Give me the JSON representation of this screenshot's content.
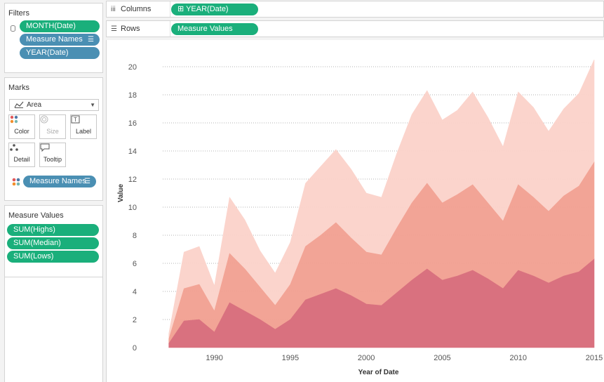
{
  "filters": {
    "title": "Filters",
    "pills": [
      "MONTH(Date)",
      "Measure Names",
      "YEAR(Date)"
    ]
  },
  "marks": {
    "title": "Marks",
    "mark_type": "Area",
    "buttons": [
      "Color",
      "Size",
      "Label",
      "Detail",
      "Tooltip"
    ],
    "color_pill": "Measure Names"
  },
  "measure_values": {
    "title": "Measure Values",
    "pills": [
      "SUM(Highs)",
      "SUM(Median)",
      "SUM(Lows)"
    ]
  },
  "shelves": {
    "columns_label": "Columns",
    "columns_pill": "YEAR(Date)",
    "rows_label": "Rows",
    "rows_pill": "Measure Values"
  },
  "colors": {
    "green_pill": "#1aaf7b",
    "blue_pill": "#4a8fb3",
    "lows": "#d9717f",
    "median": "#f2a091",
    "highs": "#fbd2ca"
  },
  "chart_data": {
    "type": "area",
    "stacked": true,
    "xlabel": "Year of Date",
    "ylabel": "Value",
    "xlim": [
      1986.6,
      2015
    ],
    "ylim": [
      0,
      21
    ],
    "x_ticks": [
      1990,
      1995,
      2000,
      2005,
      2010,
      2015
    ],
    "y_ticks": [
      0,
      2,
      4,
      6,
      8,
      10,
      12,
      14,
      16,
      18,
      20
    ],
    "grid": true,
    "x": [
      1987,
      1988,
      1989,
      1990,
      1991,
      1992,
      1993,
      1994,
      1995,
      1996,
      1997,
      1998,
      1999,
      2000,
      2001,
      2002,
      2003,
      2004,
      2005,
      2006,
      2007,
      2008,
      2009,
      2010,
      2011,
      2012,
      2013,
      2014,
      2015
    ],
    "series": [
      {
        "name": "SUM(Lows)",
        "values": [
          0.3,
          1.9,
          2.0,
          1.1,
          3.2,
          2.6,
          2.0,
          1.3,
          2.0,
          3.4,
          3.8,
          4.2,
          3.7,
          3.1,
          3.0,
          3.9,
          4.8,
          5.6,
          4.8,
          5.1,
          5.5,
          4.9,
          4.2,
          5.5,
          5.1,
          4.6,
          5.1,
          5.4,
          6.3
        ]
      },
      {
        "name": "SUM(Median)",
        "values": [
          0.3,
          2.3,
          2.5,
          1.5,
          3.5,
          3.0,
          2.3,
          1.7,
          2.5,
          3.8,
          4.2,
          4.7,
          4.1,
          3.7,
          3.6,
          4.6,
          5.5,
          6.1,
          5.5,
          5.8,
          6.1,
          5.4,
          4.8,
          6.1,
          5.6,
          5.1,
          5.7,
          6.1,
          6.9
        ]
      },
      {
        "name": "SUM(Highs)",
        "values": [
          0.4,
          2.6,
          2.7,
          1.8,
          4.0,
          3.5,
          2.6,
          2.3,
          3.0,
          4.5,
          4.9,
          5.2,
          4.9,
          4.2,
          4.1,
          5.3,
          6.3,
          6.6,
          5.9,
          6.0,
          6.6,
          6.1,
          5.3,
          6.6,
          6.4,
          5.7,
          6.2,
          6.6,
          7.3
        ]
      }
    ]
  }
}
